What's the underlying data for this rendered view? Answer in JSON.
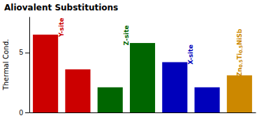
{
  "chart_data": {
    "type": "bar",
    "title": "Aliovalent Substitutions",
    "y_label": "Thermal Cond.",
    "categories": [
      null,
      null,
      null,
      null,
      null,
      null,
      null
    ],
    "values": [
      6.5,
      3.6,
      2.1,
      5.8,
      4.2,
      2.1,
      3.1
    ],
    "colors": [
      "#cc0000",
      "#cc0000",
      "#006600",
      "#006600",
      "#0000bb",
      "#0000bb",
      "#cc8800"
    ],
    "ylim": [
      0,
      8
    ],
    "yticks": [
      0,
      5
    ],
    "grid": false,
    "tick_labels": "y",
    "annotations": [
      {
        "text": "Y-site",
        "x": 0.5,
        "y": 6.3,
        "color": "#cc0000"
      },
      {
        "text": "Z-site",
        "x": 2.5,
        "y": 5.6,
        "color": "#006600"
      },
      {
        "text": "X-site",
        "x": 4.5,
        "y": 4.0,
        "color": "#0000bb"
      },
      {
        "text": "Zn0.5Ti0.5NiSb",
        "x": 6.0,
        "y": 3.0,
        "color": "#cc8800"
      }
    ]
  }
}
